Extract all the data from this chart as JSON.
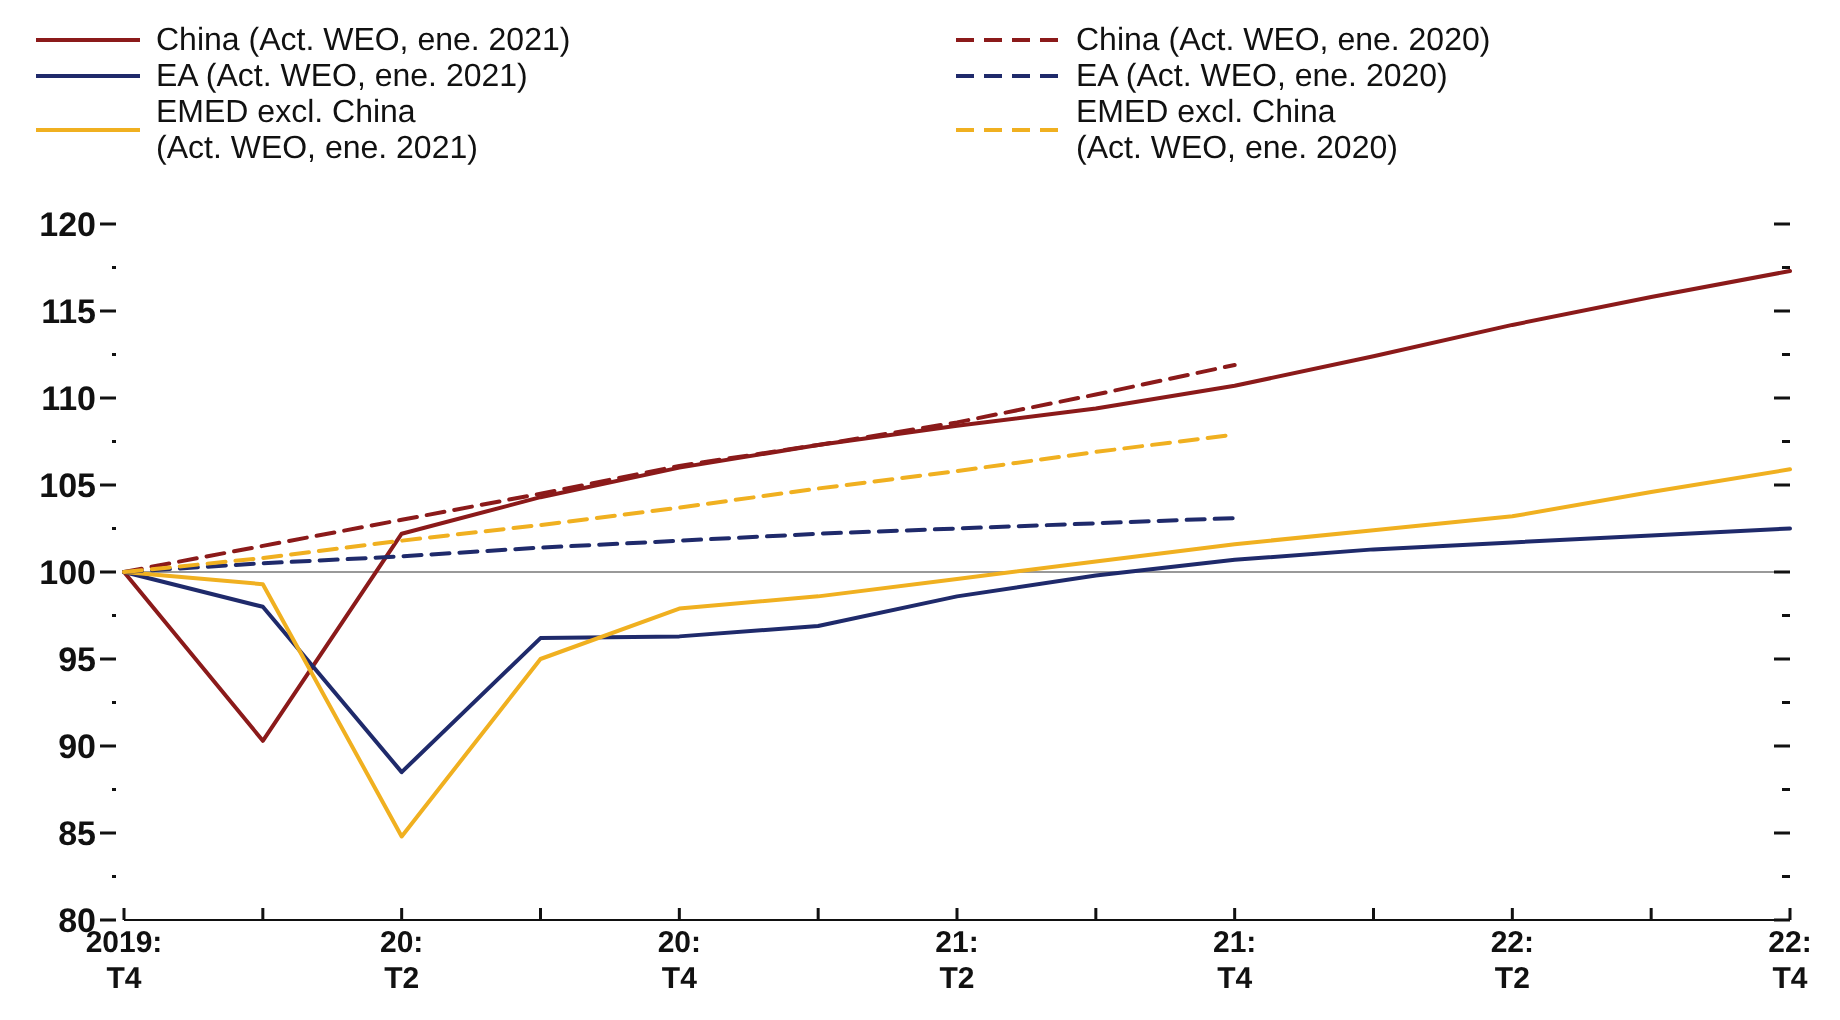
{
  "chart_data": {
    "type": "line",
    "categories": [
      "2019:\nT4",
      null,
      "20:\nT2",
      null,
      "20:\nT4",
      null,
      "21:\nT2",
      null,
      "21:\nT4",
      null,
      "22:\nT2",
      null,
      "22:\nT4"
    ],
    "ylim": [
      80,
      120
    ],
    "yticks": [
      80,
      {
        "value": 82.5,
        "label": null
      },
      85,
      {
        "value": 87.5,
        "label": null
      },
      90,
      {
        "value": 92.5,
        "label": null
      },
      95,
      {
        "value": 97.5,
        "label": null
      },
      100,
      {
        "value": 102.5,
        "label": null
      },
      105,
      {
        "value": 107.5,
        "label": null
      },
      110,
      {
        "value": 112.5,
        "label": null
      },
      115,
      {
        "value": 117.5,
        "label": null
      },
      120
    ],
    "grid": false,
    "legend": "top",
    "marker": "none",
    "ref_lines": [
      {
        "axis": "y",
        "value": 100,
        "color": "#999999"
      }
    ],
    "series": [
      {
        "name": "China (Act. WEO, ene. 2021)",
        "color": "#8b1a1a",
        "line_style": "solid",
        "values": [
          100,
          90.3,
          102.2,
          104.3,
          106.0,
          107.3,
          108.4,
          109.4,
          110.7,
          112.4,
          114.2,
          115.8,
          117.3
        ]
      },
      {
        "name": "EA (Act. WEO, ene. 2021)",
        "color": "#1f2a6b",
        "line_style": "solid",
        "values": [
          100,
          98.0,
          88.5,
          96.2,
          96.3,
          96.9,
          98.6,
          99.8,
          100.7,
          101.3,
          101.7,
          102.1,
          102.5
        ]
      },
      {
        "name": "EMED excl. China\n(Act. WEO, ene. 2021)",
        "color": "#f0b020",
        "line_style": "solid",
        "values": [
          100,
          99.3,
          84.8,
          95.0,
          97.9,
          98.6,
          99.6,
          100.6,
          101.6,
          102.4,
          103.2,
          104.6,
          105.9
        ]
      },
      {
        "name": "China (Act. WEO, ene. 2020)",
        "color": "#8b1a1a",
        "line_style": "dashed",
        "values": [
          100,
          101.5,
          103.0,
          104.5,
          106.1,
          107.3,
          108.6,
          110.2,
          111.9,
          null,
          null,
          null,
          null
        ]
      },
      {
        "name": "EA (Act. WEO, ene. 2020)",
        "color": "#1f2a6b",
        "line_style": "dashed",
        "values": [
          100,
          100.5,
          100.9,
          101.4,
          101.8,
          102.2,
          102.5,
          102.8,
          103.1,
          null,
          null,
          null,
          null
        ]
      },
      {
        "name": "EMED excl. China\n(Act. WEO, ene. 2020)",
        "color": "#f0b020",
        "line_style": "dashed",
        "values": [
          100,
          100.8,
          101.8,
          102.7,
          103.7,
          104.8,
          105.8,
          106.9,
          107.9,
          null,
          null,
          null,
          null
        ]
      }
    ]
  }
}
